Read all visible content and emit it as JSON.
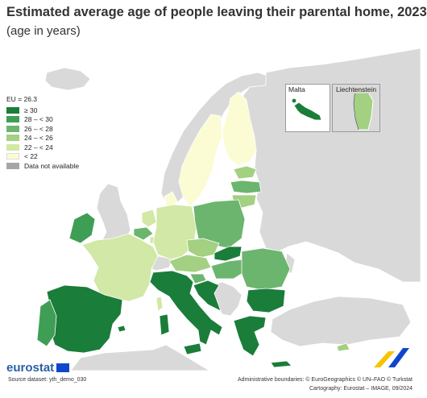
{
  "title": "Estimated average age of people leaving their parental home, 2023",
  "subtitle": "(age in years)",
  "legend": {
    "reference": "EU = 26.3",
    "classes": [
      {
        "label": "≥ 30",
        "color": "#1a7d3a"
      },
      {
        "label": "28 – < 30",
        "color": "#3f9e55"
      },
      {
        "label": "26 – < 28",
        "color": "#6cb56f"
      },
      {
        "label": "24 – < 26",
        "color": "#a3d081"
      },
      {
        "label": "22 – < 24",
        "color": "#d2e8a6"
      },
      {
        "label": "< 22",
        "color": "#fbfcd3"
      },
      {
        "label": "Data not available",
        "color": "#a6a6a6"
      }
    ]
  },
  "insets": {
    "malta": "Malta",
    "liechtenstein": "Liechtenstein"
  },
  "logo": {
    "text": "eurostat"
  },
  "source": "Source dataset: yth_demo_030",
  "credits": {
    "boundaries": "Administrative boundaries: © EuroGeographics © UN–FAO © Turkstat",
    "cartography": "Cartography: Eurostat – IMAGE, 09/2024"
  },
  "colors": {
    "sea": "#ffffff",
    "non_eu": "#d9d9d9",
    "border": "#ffffff"
  }
}
